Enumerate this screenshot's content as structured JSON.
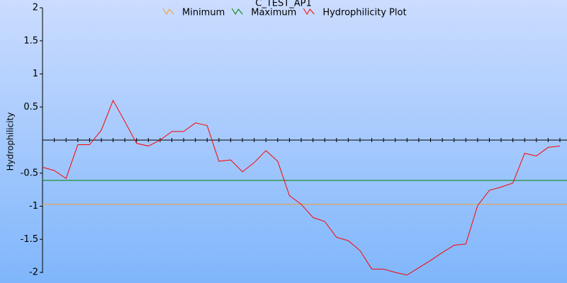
{
  "chart_data": {
    "type": "line",
    "title": "C_TEST_AP1",
    "y_label": "Hydrophilicity",
    "ylim": [
      -2,
      2
    ],
    "yticks": [
      -2,
      -1.5,
      -1,
      -0.5,
      0.5,
      1,
      1.5,
      2
    ],
    "series": [
      {
        "name": "Minimum",
        "color": "#f0a030",
        "values": [
          -0.97,
          -0.97
        ]
      },
      {
        "name": "Maximum",
        "color": "#008000",
        "values": [
          -0.61,
          -0.61
        ]
      },
      {
        "name": "Hydrophilicity Plot",
        "color": "#ff0000",
        "values": [
          -0.41,
          -0.46,
          -0.58,
          -0.07,
          -0.07,
          0.15,
          0.6,
          0.28,
          -0.05,
          -0.09,
          0,
          0.13,
          0.13,
          0.26,
          0.22,
          -0.32,
          -0.3,
          -0.48,
          -0.34,
          -0.16,
          -0.32,
          -0.84,
          -0.97,
          -1.17,
          -1.23,
          -1.47,
          -1.52,
          -1.67,
          -1.95,
          -1.95,
          -2.0,
          -2.04,
          -1.93,
          -1.82,
          -1.7,
          -1.59,
          -1.57,
          -0.99,
          -0.76,
          -0.71,
          -0.65,
          -0.2,
          -0.24,
          -0.11,
          -0.09
        ]
      }
    ]
  }
}
